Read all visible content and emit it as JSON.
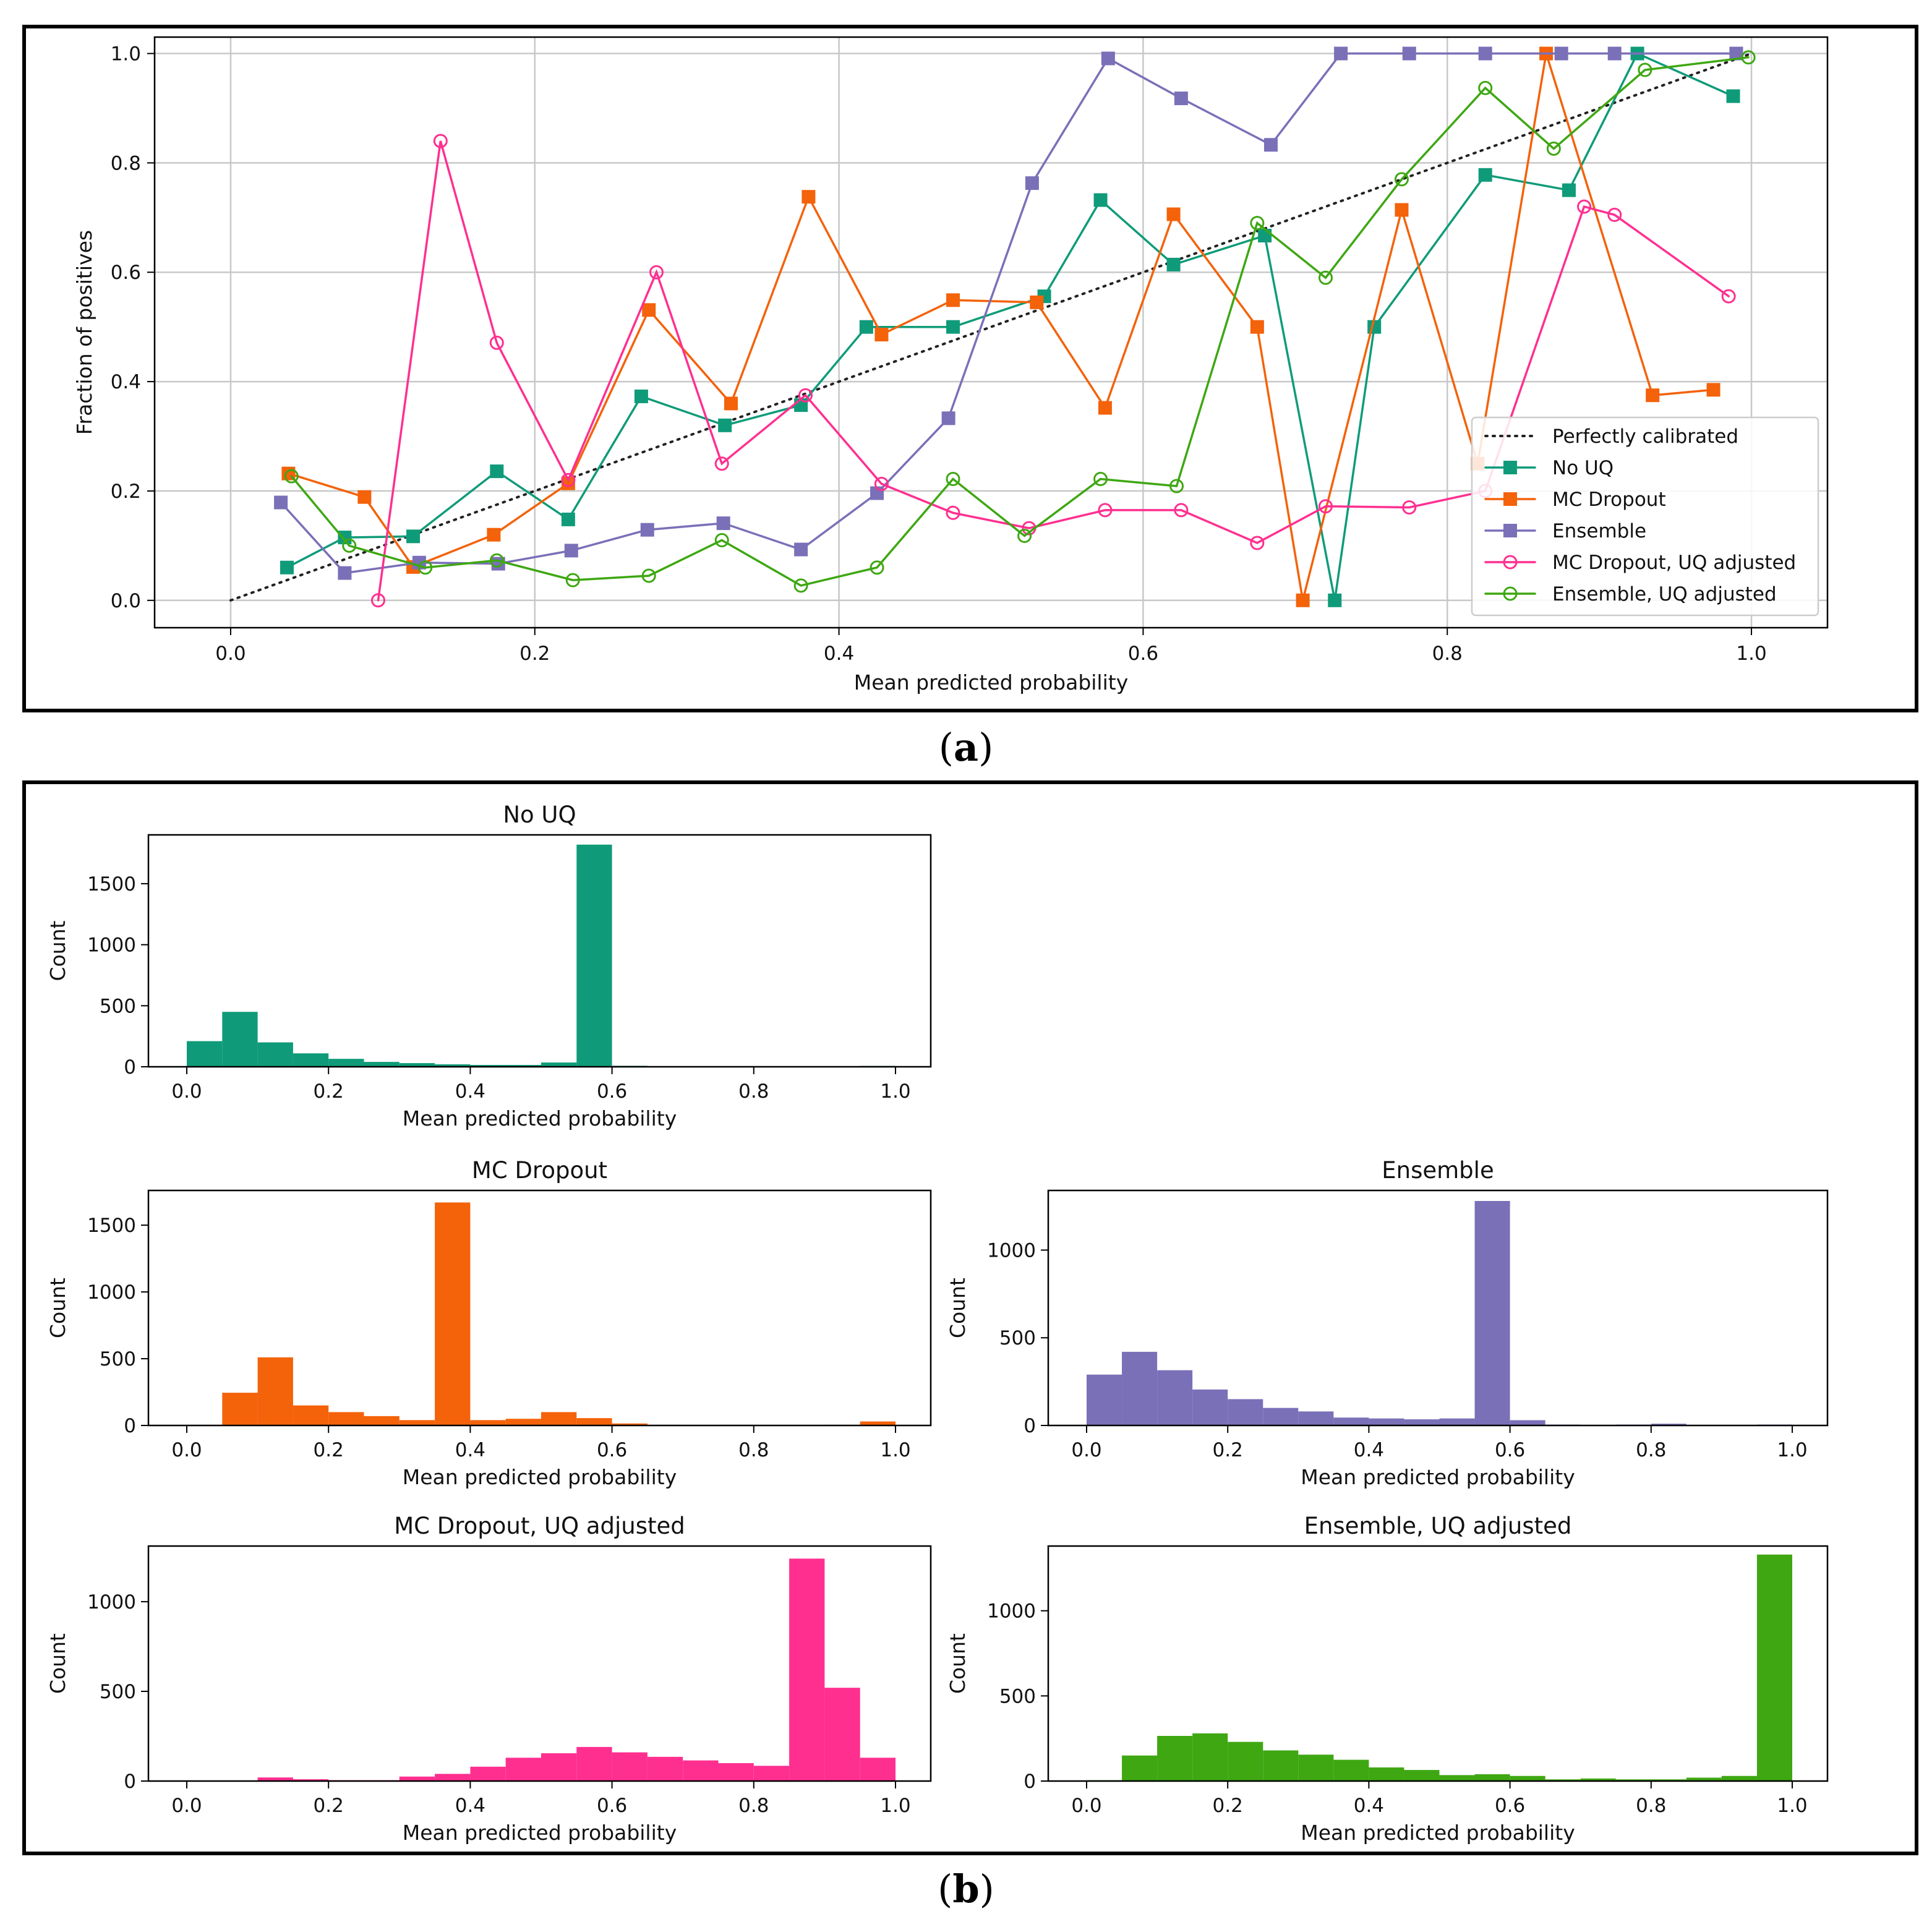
{
  "panel_labels": {
    "a": "a",
    "b": "b"
  },
  "colors": {
    "no_uq": "#0f9b79",
    "mc_dropout": "#f4620a",
    "ensemble": "#7a70b8",
    "mc_uq": "#ff2f90",
    "ens_uq": "#3ea712",
    "perfect": "#222222"
  },
  "chart_data": [
    {
      "id": "calibration",
      "type": "line",
      "xlabel": "Mean predicted probability",
      "ylabel": "Fraction of positives",
      "xlim": [
        -0.05,
        1.05
      ],
      "ylim": [
        -0.05,
        1.03
      ],
      "xticks": [
        "0.0",
        "0.2",
        "0.4",
        "0.6",
        "0.8",
        "1.0"
      ],
      "yticks": [
        "0.0",
        "0.2",
        "0.4",
        "0.6",
        "0.8",
        "1.0"
      ],
      "grid": true,
      "legend_position": "bottom-right",
      "series": [
        {
          "name": "Perfectly calibrated",
          "key": "perfect",
          "marker": "none",
          "dotted": true,
          "x": [
            0,
            1
          ],
          "y": [
            0,
            1
          ]
        },
        {
          "name": "No UQ",
          "key": "no_uq",
          "marker": "square",
          "x": [
            0.037,
            0.075,
            0.12,
            0.175,
            0.222,
            0.27,
            0.325,
            0.375,
            0.418,
            0.475,
            0.535,
            0.572,
            0.62,
            0.68,
            0.726,
            0.752,
            0.825,
            0.88,
            0.925,
            0.988
          ],
          "y": [
            0.06,
            0.115,
            0.117,
            0.236,
            0.148,
            0.373,
            0.32,
            0.357,
            0.5,
            0.5,
            0.556,
            0.732,
            0.614,
            0.667,
            0.0,
            0.5,
            0.778,
            0.75,
            1.0,
            0.922
          ]
        },
        {
          "name": "MC Dropout",
          "key": "mc_dropout",
          "marker": "square",
          "x": [
            0.038,
            0.088,
            0.12,
            0.173,
            0.222,
            0.275,
            0.329,
            0.38,
            0.428,
            0.475,
            0.53,
            0.575,
            0.62,
            0.675,
            0.705,
            0.77,
            0.82,
            0.865,
            0.935,
            0.975
          ],
          "y": [
            0.232,
            0.189,
            0.061,
            0.12,
            0.214,
            0.531,
            0.36,
            0.738,
            0.486,
            0.549,
            0.545,
            0.352,
            0.706,
            0.5,
            0.0,
            0.714,
            0.25,
            1.0,
            0.375,
            0.385
          ]
        },
        {
          "name": "Ensemble",
          "key": "ensemble",
          "marker": "square",
          "x": [
            0.033,
            0.075,
            0.124,
            0.176,
            0.224,
            0.274,
            0.324,
            0.375,
            0.425,
            0.472,
            0.527,
            0.577,
            0.625,
            0.684,
            0.73,
            0.775,
            0.825,
            0.875,
            0.91,
            0.99
          ],
          "y": [
            0.179,
            0.05,
            0.069,
            0.067,
            0.091,
            0.129,
            0.141,
            0.093,
            0.196,
            0.333,
            0.763,
            0.991,
            0.918,
            0.833,
            1.0,
            1.0,
            1.0,
            1.0,
            1.0,
            1.0
          ]
        },
        {
          "name": "MC Dropout, UQ adjusted",
          "key": "mc_uq",
          "marker": "circle",
          "x": [
            0.097,
            0.138,
            0.175,
            0.222,
            0.28,
            0.323,
            0.378,
            0.428,
            0.475,
            0.525,
            0.575,
            0.625,
            0.675,
            0.72,
            0.775,
            0.825,
            0.89,
            0.91,
            0.985
          ],
          "y": [
            0.0,
            0.84,
            0.471,
            0.22,
            0.6,
            0.25,
            0.375,
            0.213,
            0.16,
            0.132,
            0.165,
            0.165,
            0.105,
            0.172,
            0.17,
            0.2,
            0.72,
            0.705,
            0.556
          ]
        },
        {
          "name": "Ensemble, UQ adjusted",
          "key": "ens_uq",
          "marker": "circle",
          "x": [
            0.04,
            0.078,
            0.128,
            0.175,
            0.225,
            0.275,
            0.323,
            0.375,
            0.425,
            0.475,
            0.522,
            0.572,
            0.622,
            0.675,
            0.72,
            0.77,
            0.825,
            0.87,
            0.93,
            0.998
          ],
          "y": [
            0.227,
            0.1,
            0.06,
            0.073,
            0.037,
            0.045,
            0.11,
            0.027,
            0.06,
            0.222,
            0.118,
            0.222,
            0.209,
            0.69,
            0.59,
            0.77,
            0.937,
            0.826,
            0.97,
            0.993
          ]
        }
      ]
    },
    {
      "id": "hist_no_uq",
      "type": "bar",
      "title": "No UQ",
      "key": "no_uq",
      "xlabel": "Mean predicted probability",
      "ylabel": "Count",
      "xticks": [
        "0.0",
        "0.2",
        "0.4",
        "0.6",
        "0.8",
        "1.0"
      ],
      "yticks": [
        "0",
        "500",
        "1000",
        "1500"
      ],
      "ytick_values": [
        0,
        500,
        1000,
        1500
      ],
      "ylim": [
        0,
        1900
      ],
      "bin_width": 0.05,
      "values": [
        210,
        450,
        200,
        110,
        65,
        40,
        30,
        20,
        15,
        15,
        35,
        1820,
        8,
        3,
        3,
        3,
        2,
        2,
        2,
        7
      ]
    },
    {
      "id": "hist_mc",
      "type": "bar",
      "title": "MC Dropout",
      "key": "mc_dropout",
      "xlabel": "Mean predicted probability",
      "ylabel": "Count",
      "xticks": [
        "0.0",
        "0.2",
        "0.4",
        "0.6",
        "0.8",
        "1.0"
      ],
      "yticks": [
        "0",
        "500",
        "1000",
        "1500"
      ],
      "ytick_values": [
        0,
        500,
        1000,
        1500
      ],
      "ylim": [
        0,
        1760
      ],
      "bin_width": 0.05,
      "values": [
        5,
        245,
        510,
        150,
        100,
        70,
        40,
        1670,
        40,
        50,
        100,
        55,
        15,
        5,
        3,
        5,
        3,
        3,
        5,
        30
      ]
    },
    {
      "id": "hist_ens",
      "type": "bar",
      "title": "Ensemble",
      "key": "ensemble",
      "xlabel": "Mean predicted probability",
      "ylabel": "Count",
      "xticks": [
        "0.0",
        "0.2",
        "0.4",
        "0.6",
        "0.8",
        "1.0"
      ],
      "yticks": [
        "0",
        "500",
        "1000"
      ],
      "ytick_values": [
        0,
        500,
        1000
      ],
      "ylim": [
        0,
        1340
      ],
      "bin_width": 0.05,
      "values": [
        290,
        420,
        315,
        205,
        150,
        100,
        80,
        45,
        40,
        35,
        40,
        1280,
        30,
        5,
        3,
        5,
        10,
        3,
        3,
        5
      ]
    },
    {
      "id": "hist_mc_uq",
      "type": "bar",
      "title": "MC Dropout, UQ adjusted",
      "key": "mc_uq",
      "xlabel": "Mean predicted probability",
      "ylabel": "Count",
      "xticks": [
        "0.0",
        "0.2",
        "0.4",
        "0.6",
        "0.8",
        "1.0"
      ],
      "yticks": [
        "0",
        "500",
        "1000"
      ],
      "ytick_values": [
        0,
        500,
        1000
      ],
      "ylim": [
        0,
        1310
      ],
      "bin_width": 0.05,
      "values": [
        0,
        0,
        20,
        10,
        5,
        5,
        25,
        40,
        80,
        130,
        155,
        190,
        160,
        135,
        115,
        100,
        85,
        1240,
        520,
        130
      ]
    },
    {
      "id": "hist_ens_uq",
      "type": "bar",
      "title": "Ensemble, UQ adjusted",
      "key": "ens_uq",
      "xlabel": "Mean predicted probability",
      "ylabel": "Count",
      "xticks": [
        "0.0",
        "0.2",
        "0.4",
        "0.6",
        "0.8",
        "1.0"
      ],
      "yticks": [
        "0",
        "500",
        "1000"
      ],
      "ytick_values": [
        0,
        500,
        1000
      ],
      "ylim": [
        0,
        1380
      ],
      "bin_width": 0.05,
      "values": [
        5,
        150,
        265,
        280,
        230,
        180,
        155,
        125,
        80,
        65,
        35,
        40,
        30,
        10,
        15,
        10,
        10,
        20,
        30,
        1330
      ]
    }
  ]
}
